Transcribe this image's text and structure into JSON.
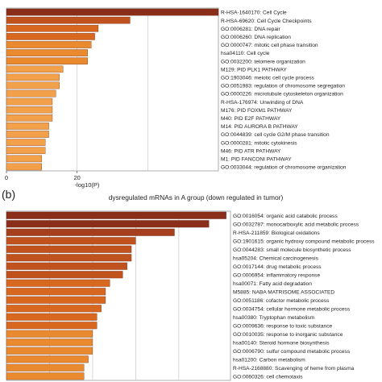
{
  "panel_b_label": "(b)",
  "chart_data": [
    {
      "type": "bar",
      "orientation": "horizontal",
      "title": "",
      "xlabel": "-log10(P)",
      "ylabel": "",
      "xlim": [
        0,
        60
      ],
      "x_ticks": [
        0,
        20
      ],
      "grid": "vertical",
      "colors": [
        "#8a2e1a",
        "#a63f1e",
        "#c0521e",
        "#d8681f",
        "#ea8a2f",
        "#f2a04a"
      ],
      "categories": [
        "R-HSA-1640170: Cell Cycle",
        "R-HSA-69620: Cell Cycle Checkpoints",
        "GO:0006281: DNA repair",
        "GO:0006260: DNA replication",
        "GO:0000747: mitotic cell phase transition",
        "hsa04110: Cell cycle",
        "GO:0032200: telomere organization",
        "M129: PID PLK1 PATHWAY",
        "GO:1903046: meiotic cell cycle process",
        "GO:0051983: regulation of chromosome segregation",
        "GO:0000226: microtubule cytoskeleton organization",
        "R-HSA-176974: Unwinding of DNA",
        "M176: PID FOXM1 PATHWAY",
        "M40: PID E2F PATHWAY",
        "M14: PID AURORA B PATHWAY",
        "GO:0044839: cell cycle G2/M phase transition",
        "GO:0000281: mitotic cytokinesis",
        "M46: PID ATR PATHWAY",
        "M1: PID FANCONI PATHWAY",
        "GO:0033044: regulation of chromosome organization"
      ],
      "values": [
        60,
        35,
        26,
        25,
        24,
        23,
        23,
        16,
        15,
        15,
        14,
        13,
        13,
        13,
        12,
        12,
        11,
        11,
        10,
        10
      ]
    },
    {
      "type": "bar",
      "orientation": "horizontal",
      "title": "dysregulated mRNAs in A group (down regulated in tumor)",
      "xlabel": "",
      "ylabel": "",
      "xlim": [
        0,
        52
      ],
      "grid": "vertical",
      "colors": [
        "#8a2e1a",
        "#a63f1e",
        "#c0521e",
        "#d8681f",
        "#ea8a2f",
        "#f2a04a"
      ],
      "categories": [
        "GO:0016054: organic acid catabolic process",
        "GO:0032787: monocarboxylic acid metabolic process",
        "R-HSA-211859: Biological oxidations",
        "GO:1901615: organic hydroxy compound metabolic process",
        "GO:0044283: small molecule biosynthetic process",
        "hsa05204: Chemical carcinogenesis",
        "GO:0017144: drug metabolic process",
        "GO:0006954: inflammatory response",
        "hsa00071: Fatty acid degradation",
        "M5885: NABA MATRISOME ASSOCIATED",
        "GO:0051186: cofactor metabolic process",
        "GO:0034754: cellular hormone metabolic process",
        "hsa00380: Tryptophan metabolism",
        "GO:0009636: response to toxic substance",
        "GO:0010035: response to inorganic substance",
        "hsa00140: Steroid hormone biosynthesis",
        "GO:0006790: sulfur compound metabolic process",
        "hsa01200: Carbon metabolism",
        "R-HSA-2168880: Scavenging of heme from plasma",
        "GO:0060326: cell chemotaxis"
      ],
      "values": [
        51,
        47,
        39,
        30,
        29,
        29,
        28,
        27,
        24,
        23,
        23,
        22,
        21,
        21,
        20,
        20,
        20,
        19,
        18,
        18
      ]
    }
  ]
}
